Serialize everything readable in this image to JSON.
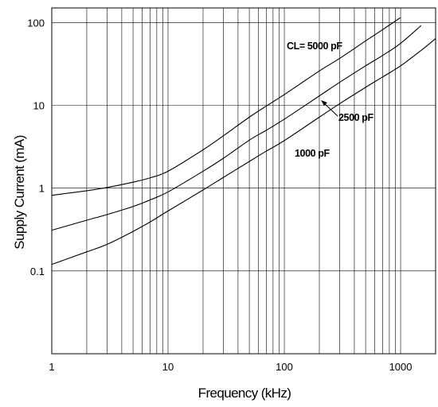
{
  "chart_data": {
    "type": "line",
    "title": "",
    "xlabel": "Frequency (kHz)",
    "ylabel": "Supply Current (mA)",
    "x_scale": "log",
    "y_scale": "log",
    "xlim": [
      1,
      2000
    ],
    "ylim": [
      0.01,
      150
    ],
    "grid": true,
    "x_ticks": [
      {
        "value": 1,
        "label": "1"
      },
      {
        "value": 10,
        "label": "10"
      },
      {
        "value": 100,
        "label": "100"
      },
      {
        "value": 1000,
        "label": "1000"
      }
    ],
    "y_ticks": [
      {
        "value": 0.1,
        "label": "0.1"
      },
      {
        "value": 1,
        "label": "1"
      },
      {
        "value": 10,
        "label": "10"
      },
      {
        "value": 100,
        "label": "100"
      }
    ],
    "series": [
      {
        "name": "CL= 5000 pF",
        "x": [
          1,
          2,
          3,
          5,
          7,
          10,
          20,
          30,
          50,
          70,
          100,
          200,
          300,
          500,
          700,
          1000
        ],
        "y": [
          0.82,
          0.93,
          1.02,
          1.18,
          1.33,
          1.6,
          2.9,
          4.3,
          7.2,
          9.8,
          13.5,
          26,
          37,
          60,
          82,
          115
        ]
      },
      {
        "name": "2500 pF",
        "x": [
          1,
          2,
          3,
          5,
          7,
          10,
          20,
          30,
          50,
          70,
          100,
          200,
          300,
          500,
          700,
          1000,
          1500
        ],
        "y": [
          0.31,
          0.41,
          0.48,
          0.6,
          0.72,
          0.9,
          1.6,
          2.3,
          3.8,
          5.0,
          6.8,
          13,
          19,
          30,
          40,
          56,
          92
        ]
      },
      {
        "name": "1000 pF",
        "x": [
          1,
          2,
          3,
          5,
          7,
          10,
          20,
          30,
          50,
          70,
          100,
          200,
          300,
          500,
          700,
          1000,
          1500,
          2000
        ],
        "y": [
          0.12,
          0.17,
          0.21,
          0.3,
          0.39,
          0.53,
          0.95,
          1.35,
          2.1,
          2.8,
          3.75,
          7.2,
          10.5,
          16.5,
          22,
          30,
          46,
          64
        ]
      }
    ],
    "annotations": [
      {
        "text": "CL= 5000 pF",
        "series": "CL= 5000 pF"
      },
      {
        "text": "2500 pF",
        "series": "2500 pF",
        "arrow": true
      },
      {
        "text": "1000 pF",
        "series": "1000 pF"
      }
    ]
  }
}
